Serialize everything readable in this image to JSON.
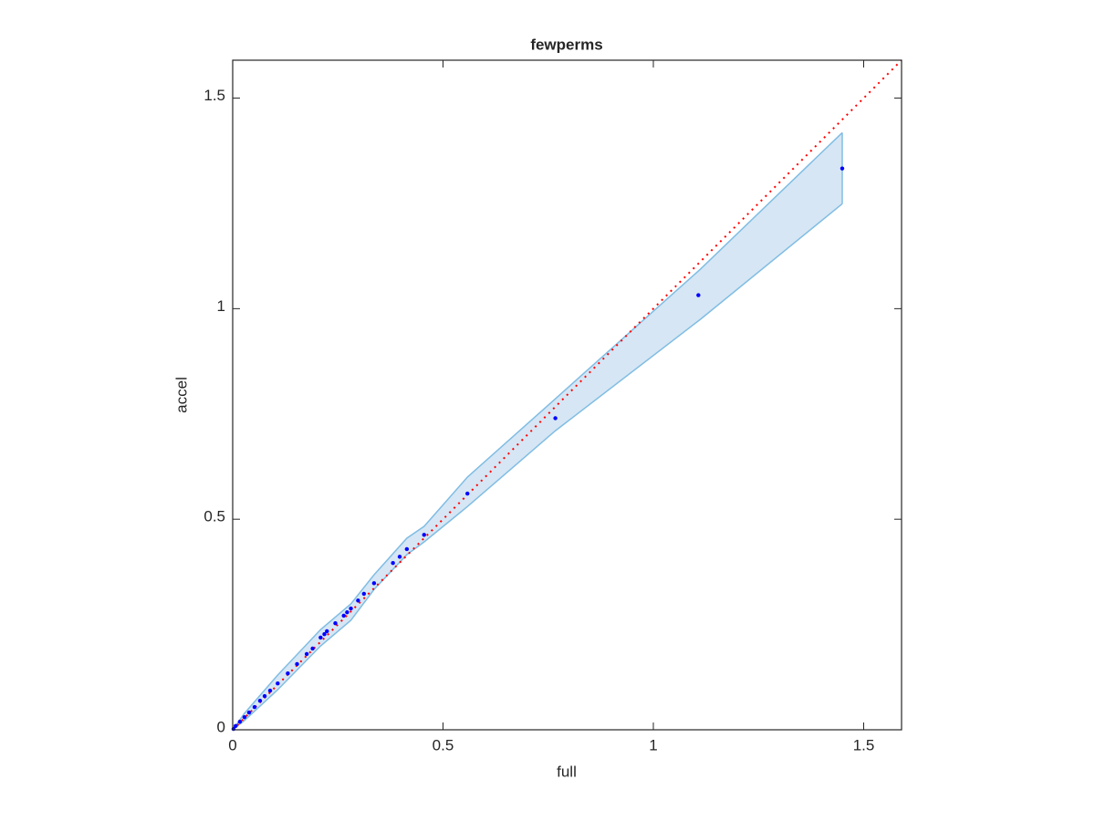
{
  "chart_data": {
    "type": "scatter",
    "title": "fewperms",
    "x_label": "full",
    "y_label": "accel",
    "xlim": [
      0,
      1.59
    ],
    "ylim": [
      0,
      1.59
    ],
    "xticks": [
      0,
      0.5,
      1,
      1.5
    ],
    "yticks": [
      0,
      0.5,
      1,
      1.5
    ],
    "point_color": "#0000ff",
    "reference_line_color": "#ff0000",
    "band": {
      "fill": "#d6e6f4",
      "edge": "#80bde3",
      "x": [
        0,
        0.028,
        0.107,
        0.209,
        0.281,
        0.336,
        0.414,
        0.455,
        0.558,
        0.767,
        1.111,
        1.449
      ],
      "upper": [
        0,
        0.039,
        0.13,
        0.238,
        0.299,
        0.368,
        0.455,
        0.483,
        0.6,
        0.786,
        1.093,
        1.418
      ],
      "lower": [
        0,
        0.022,
        0.095,
        0.199,
        0.26,
        0.333,
        0.416,
        0.446,
        0.53,
        0.71,
        0.974,
        1.249
      ]
    },
    "x": [
      1.449,
      1.107,
      0.767,
      0.558,
      0.455,
      0.414,
      0.397,
      0.381,
      0.336,
      0.312,
      0.298,
      0.281,
      0.272,
      0.264,
      0.244,
      0.224,
      0.218,
      0.209,
      0.19,
      0.176,
      0.153,
      0.131,
      0.107,
      0.089,
      0.076,
      0.065,
      0.052,
      0.039,
      0.028,
      0.017,
      0.007,
      0.002
    ],
    "values": [
      1.333,
      1.032,
      0.74,
      0.561,
      0.463,
      0.429,
      0.411,
      0.396,
      0.348,
      0.323,
      0.307,
      0.288,
      0.279,
      0.271,
      0.253,
      0.234,
      0.227,
      0.219,
      0.193,
      0.18,
      0.156,
      0.134,
      0.11,
      0.093,
      0.08,
      0.069,
      0.054,
      0.041,
      0.03,
      0.019,
      0.009,
      0.002
    ]
  }
}
